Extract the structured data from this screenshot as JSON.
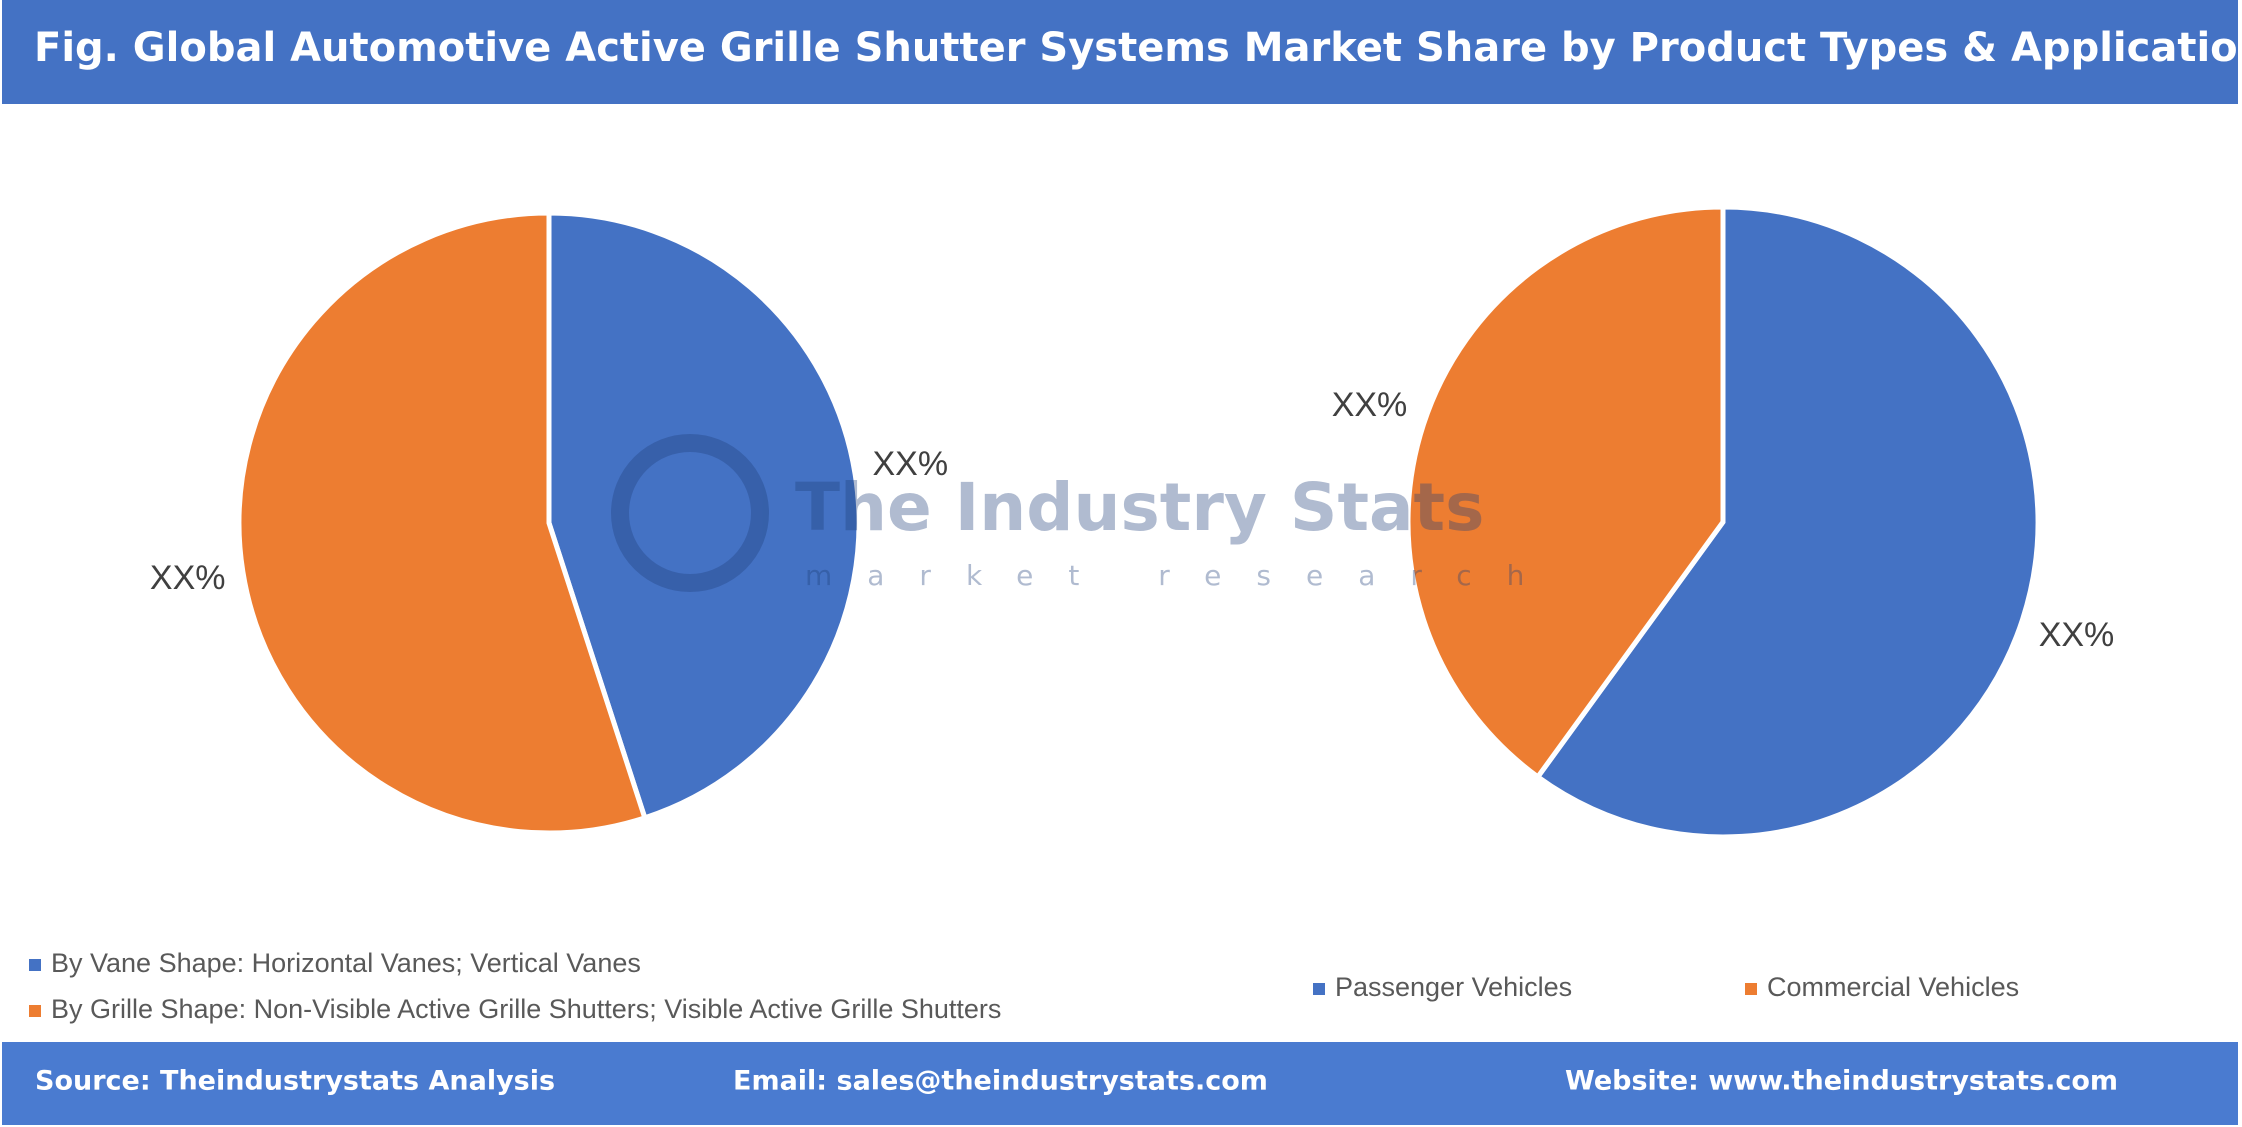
{
  "header": {
    "title": "Fig. Global Automotive Active Grille Shutter Systems Market Share by Product Types & Application"
  },
  "watermark": {
    "name": "The Industry Stats",
    "tagline": "market research"
  },
  "footer": {
    "source": "Source: Theindustrystats Analysis",
    "email": "Email: sales@theindustrystats.com",
    "website": "Website: www.theindustrystats.com"
  },
  "chart_data": [
    {
      "type": "pie",
      "categories": [
        "By Vane Shape: Horizontal Vanes; Vertical Vanes",
        "By Grille Shape: Non-Visible Active Grille Shutters; Visible Active Grille Shutters"
      ],
      "values": [
        45,
        55
      ],
      "value_labels": [
        "XX%",
        "XX%"
      ],
      "colors": [
        "#4472c4",
        "#ed7d31"
      ]
    },
    {
      "type": "pie",
      "categories": [
        "Passenger Vehicles",
        "Commercial Vehicles"
      ],
      "values": [
        60,
        40
      ],
      "value_labels": [
        "XX%",
        "XX%"
      ],
      "colors": [
        "#4472c4",
        "#ed7d31"
      ]
    }
  ]
}
